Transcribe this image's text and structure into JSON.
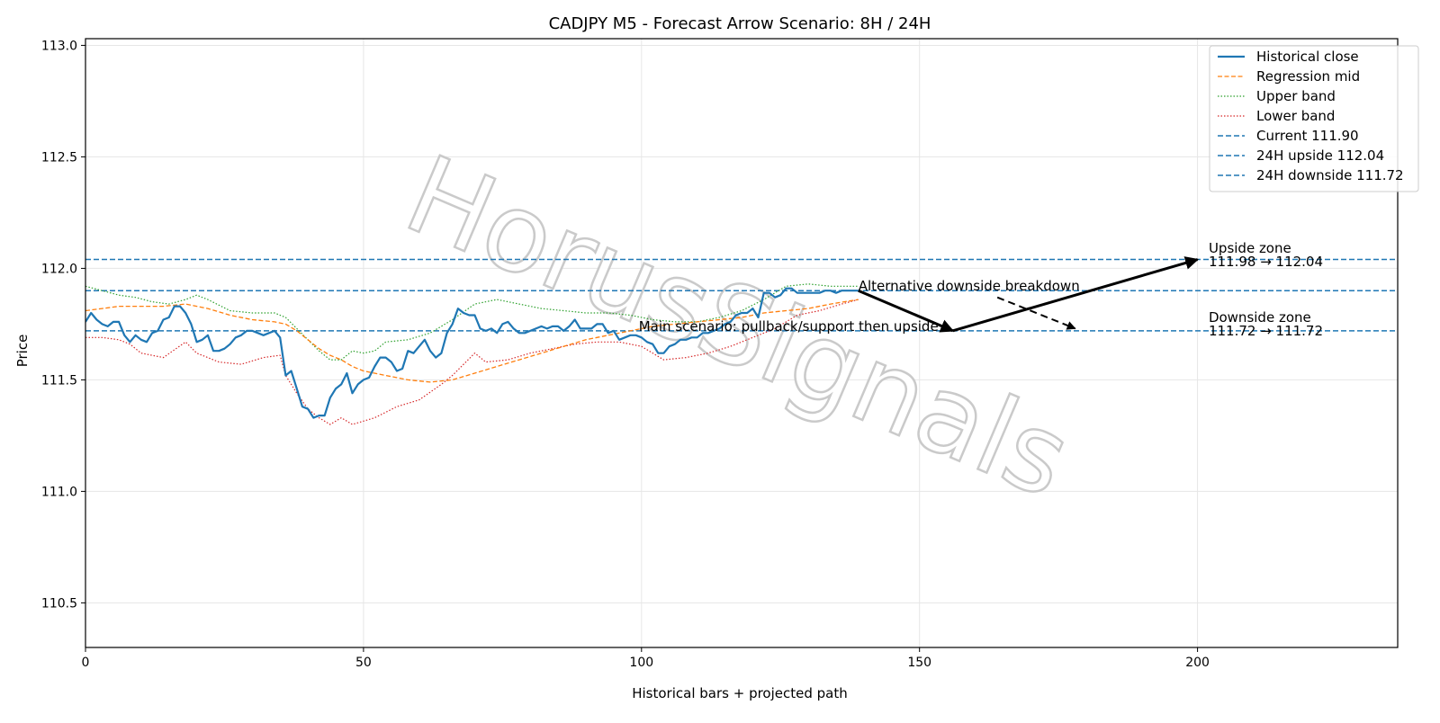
{
  "chart_data": {
    "type": "line",
    "title": "CADJPY M5 - Forecast Arrow Scenario: 8H / 24H",
    "xlabel": "Historical bars + projected path",
    "ylabel": "Price",
    "xlim": [
      0,
      236
    ],
    "ylim": [
      110.3,
      113.03
    ],
    "x_ticks": [
      0,
      50,
      100,
      150,
      200
    ],
    "y_ticks": [
      110.5,
      111.0,
      111.5,
      112.0,
      112.5,
      113.0
    ],
    "x_tick_labels": [
      "0",
      "50",
      "100",
      "150",
      "200"
    ],
    "y_tick_labels": [
      "110.5",
      "111.0",
      "111.5",
      "112.0",
      "112.5",
      "113.0"
    ],
    "grid": true,
    "legend_position": "top-right",
    "colors": {
      "historical": "#1f77b4",
      "regression": "#ff7f0e",
      "upper": "#2ca02c",
      "lower": "#d62728",
      "levels": "#1f77b4",
      "arrows": "#000000",
      "grid": "#e6e6e6"
    },
    "series": [
      {
        "name": "Historical close",
        "style": "solid",
        "points": [
          [
            0,
            111.76
          ],
          [
            1,
            111.8
          ],
          [
            2,
            111.77
          ],
          [
            3,
            111.75
          ],
          [
            4,
            111.74
          ],
          [
            5,
            111.76
          ],
          [
            6,
            111.76
          ],
          [
            7,
            111.7
          ],
          [
            8,
            111.67
          ],
          [
            9,
            111.7
          ],
          [
            10,
            111.68
          ],
          [
            11,
            111.67
          ],
          [
            12,
            111.71
          ],
          [
            13,
            111.72
          ],
          [
            14,
            111.77
          ],
          [
            15,
            111.78
          ],
          [
            16,
            111.83
          ],
          [
            17,
            111.83
          ],
          [
            18,
            111.8
          ],
          [
            19,
            111.75
          ],
          [
            20,
            111.67
          ],
          [
            21,
            111.68
          ],
          [
            22,
            111.7
          ],
          [
            23,
            111.63
          ],
          [
            24,
            111.63
          ],
          [
            25,
            111.64
          ],
          [
            26,
            111.66
          ],
          [
            27,
            111.69
          ],
          [
            28,
            111.7
          ],
          [
            29,
            111.72
          ],
          [
            30,
            111.72
          ],
          [
            31,
            111.71
          ],
          [
            32,
            111.7
          ],
          [
            33,
            111.71
          ],
          [
            34,
            111.72
          ],
          [
            35,
            111.69
          ],
          [
            36,
            111.52
          ],
          [
            37,
            111.54
          ],
          [
            38,
            111.46
          ],
          [
            39,
            111.38
          ],
          [
            40,
            111.37
          ],
          [
            41,
            111.33
          ],
          [
            42,
            111.34
          ],
          [
            43,
            111.34
          ],
          [
            44,
            111.42
          ],
          [
            45,
            111.46
          ],
          [
            46,
            111.48
          ],
          [
            47,
            111.53
          ],
          [
            48,
            111.44
          ],
          [
            49,
            111.48
          ],
          [
            50,
            111.5
          ],
          [
            51,
            111.51
          ],
          [
            52,
            111.56
          ],
          [
            53,
            111.6
          ],
          [
            54,
            111.6
          ],
          [
            55,
            111.58
          ],
          [
            56,
            111.54
          ],
          [
            57,
            111.55
          ],
          [
            58,
            111.63
          ],
          [
            59,
            111.62
          ],
          [
            60,
            111.65
          ],
          [
            61,
            111.68
          ],
          [
            62,
            111.63
          ],
          [
            63,
            111.6
          ],
          [
            64,
            111.62
          ],
          [
            65,
            111.71
          ],
          [
            66,
            111.75
          ],
          [
            67,
            111.82
          ],
          [
            68,
            111.8
          ],
          [
            69,
            111.79
          ],
          [
            70,
            111.79
          ],
          [
            71,
            111.73
          ],
          [
            72,
            111.72
          ],
          [
            73,
            111.73
          ],
          [
            74,
            111.71
          ],
          [
            75,
            111.75
          ],
          [
            76,
            111.76
          ],
          [
            77,
            111.73
          ],
          [
            78,
            111.71
          ],
          [
            79,
            111.71
          ],
          [
            80,
            111.72
          ],
          [
            81,
            111.73
          ],
          [
            82,
            111.74
          ],
          [
            83,
            111.73
          ],
          [
            84,
            111.74
          ],
          [
            85,
            111.74
          ],
          [
            86,
            111.72
          ],
          [
            87,
            111.74
          ],
          [
            88,
            111.77
          ],
          [
            89,
            111.73
          ],
          [
            90,
            111.73
          ],
          [
            91,
            111.73
          ],
          [
            92,
            111.75
          ],
          [
            93,
            111.75
          ],
          [
            94,
            111.71
          ],
          [
            95,
            111.72
          ],
          [
            96,
            111.68
          ],
          [
            97,
            111.69
          ],
          [
            98,
            111.7
          ],
          [
            99,
            111.7
          ],
          [
            100,
            111.69
          ],
          [
            101,
            111.67
          ],
          [
            102,
            111.66
          ],
          [
            103,
            111.62
          ],
          [
            104,
            111.62
          ],
          [
            105,
            111.65
          ],
          [
            106,
            111.66
          ],
          [
            107,
            111.68
          ],
          [
            108,
            111.68
          ],
          [
            109,
            111.69
          ],
          [
            110,
            111.69
          ],
          [
            111,
            111.71
          ],
          [
            112,
            111.71
          ],
          [
            113,
            111.72
          ],
          [
            114,
            111.73
          ],
          [
            115,
            111.75
          ],
          [
            116,
            111.76
          ],
          [
            117,
            111.79
          ],
          [
            118,
            111.8
          ],
          [
            119,
            111.8
          ],
          [
            120,
            111.82
          ],
          [
            121,
            111.78
          ],
          [
            122,
            111.89
          ],
          [
            123,
            111.89
          ],
          [
            124,
            111.87
          ],
          [
            125,
            111.88
          ],
          [
            126,
            111.91
          ],
          [
            127,
            111.91
          ],
          [
            128,
            111.89
          ],
          [
            129,
            111.89
          ],
          [
            130,
            111.89
          ],
          [
            131,
            111.89
          ],
          [
            132,
            111.89
          ],
          [
            133,
            111.9
          ],
          [
            134,
            111.9
          ],
          [
            135,
            111.89
          ],
          [
            136,
            111.9
          ],
          [
            137,
            111.9
          ],
          [
            138,
            111.9
          ],
          [
            139,
            111.9
          ]
        ]
      },
      {
        "name": "Regression mid",
        "style": "dashed",
        "points": [
          [
            0,
            111.81
          ],
          [
            3,
            111.82
          ],
          [
            6,
            111.83
          ],
          [
            10,
            111.83
          ],
          [
            14,
            111.83
          ],
          [
            18,
            111.84
          ],
          [
            22,
            111.82
          ],
          [
            26,
            111.79
          ],
          [
            30,
            111.77
          ],
          [
            34,
            111.76
          ],
          [
            36,
            111.75
          ],
          [
            38,
            111.72
          ],
          [
            40,
            111.68
          ],
          [
            42,
            111.64
          ],
          [
            44,
            111.61
          ],
          [
            46,
            111.59
          ],
          [
            48,
            111.56
          ],
          [
            50,
            111.54
          ],
          [
            54,
            111.52
          ],
          [
            58,
            111.5
          ],
          [
            62,
            111.49
          ],
          [
            66,
            111.5
          ],
          [
            70,
            111.53
          ],
          [
            74,
            111.56
          ],
          [
            78,
            111.59
          ],
          [
            82,
            111.62
          ],
          [
            86,
            111.65
          ],
          [
            90,
            111.68
          ],
          [
            94,
            111.7
          ],
          [
            98,
            111.72
          ],
          [
            102,
            111.74
          ],
          [
            106,
            111.75
          ],
          [
            110,
            111.76
          ],
          [
            114,
            111.77
          ],
          [
            118,
            111.78
          ],
          [
            122,
            111.8
          ],
          [
            126,
            111.81
          ],
          [
            130,
            111.82
          ],
          [
            134,
            111.84
          ],
          [
            139,
            111.86
          ]
        ]
      },
      {
        "name": "Upper band",
        "style": "dotted",
        "points": [
          [
            0,
            111.92
          ],
          [
            3,
            111.9
          ],
          [
            6,
            111.88
          ],
          [
            9,
            111.87
          ],
          [
            12,
            111.85
          ],
          [
            15,
            111.84
          ],
          [
            18,
            111.86
          ],
          [
            20,
            111.88
          ],
          [
            22,
            111.86
          ],
          [
            26,
            111.81
          ],
          [
            30,
            111.8
          ],
          [
            34,
            111.8
          ],
          [
            36,
            111.78
          ],
          [
            38,
            111.73
          ],
          [
            40,
            111.68
          ],
          [
            42,
            111.63
          ],
          [
            44,
            111.59
          ],
          [
            46,
            111.59
          ],
          [
            48,
            111.63
          ],
          [
            50,
            111.62
          ],
          [
            52,
            111.63
          ],
          [
            54,
            111.67
          ],
          [
            58,
            111.68
          ],
          [
            62,
            111.71
          ],
          [
            66,
            111.77
          ],
          [
            70,
            111.84
          ],
          [
            74,
            111.86
          ],
          [
            78,
            111.84
          ],
          [
            82,
            111.82
          ],
          [
            86,
            111.81
          ],
          [
            90,
            111.8
          ],
          [
            94,
            111.8
          ],
          [
            98,
            111.79
          ],
          [
            102,
            111.77
          ],
          [
            106,
            111.76
          ],
          [
            110,
            111.76
          ],
          [
            114,
            111.78
          ],
          [
            118,
            111.81
          ],
          [
            122,
            111.86
          ],
          [
            126,
            111.92
          ],
          [
            130,
            111.93
          ],
          [
            134,
            111.92
          ],
          [
            139,
            111.92
          ]
        ]
      },
      {
        "name": "Lower band",
        "style": "dotted",
        "points": [
          [
            0,
            111.69
          ],
          [
            3,
            111.69
          ],
          [
            6,
            111.68
          ],
          [
            8,
            111.66
          ],
          [
            10,
            111.62
          ],
          [
            14,
            111.6
          ],
          [
            18,
            111.67
          ],
          [
            20,
            111.62
          ],
          [
            24,
            111.58
          ],
          [
            28,
            111.57
          ],
          [
            32,
            111.6
          ],
          [
            35,
            111.61
          ],
          [
            36,
            111.52
          ],
          [
            38,
            111.44
          ],
          [
            40,
            111.37
          ],
          [
            42,
            111.33
          ],
          [
            44,
            111.3
          ],
          [
            46,
            111.33
          ],
          [
            48,
            111.3
          ],
          [
            52,
            111.33
          ],
          [
            56,
            111.38
          ],
          [
            60,
            111.41
          ],
          [
            64,
            111.48
          ],
          [
            66,
            111.52
          ],
          [
            70,
            111.62
          ],
          [
            72,
            111.58
          ],
          [
            76,
            111.59
          ],
          [
            80,
            111.62
          ],
          [
            84,
            111.64
          ],
          [
            88,
            111.66
          ],
          [
            92,
            111.67
          ],
          [
            96,
            111.67
          ],
          [
            100,
            111.65
          ],
          [
            104,
            111.59
          ],
          [
            108,
            111.6
          ],
          [
            112,
            111.62
          ],
          [
            116,
            111.65
          ],
          [
            120,
            111.69
          ],
          [
            124,
            111.73
          ],
          [
            128,
            111.79
          ],
          [
            132,
            111.81
          ],
          [
            136,
            111.84
          ],
          [
            139,
            111.86
          ]
        ]
      }
    ],
    "levels": [
      {
        "name": "Current 111.90",
        "y": 111.9
      },
      {
        "name": "24H upside 112.04",
        "y": 112.04
      },
      {
        "name": "24H downside 111.72",
        "y": 111.72
      }
    ],
    "arrows": [
      {
        "from": [
          139,
          111.9
        ],
        "to": [
          156,
          111.72
        ],
        "style": "solid"
      },
      {
        "from": [
          156,
          111.72
        ],
        "to": [
          200,
          112.04
        ],
        "style": "solid"
      },
      {
        "from": [
          164,
          111.87
        ],
        "to": [
          178,
          111.73
        ],
        "style": "dashed"
      }
    ],
    "annotations": [
      {
        "text": "Alternative downside breakdown",
        "x": 139,
        "y": 111.9
      },
      {
        "text": "Main scenario: pullback/support then upside",
        "x": 99.5,
        "y": 111.72
      },
      {
        "text": "Upside zone",
        "x": 202,
        "y": 112.07
      },
      {
        "text": "111.98 → 112.04",
        "x": 202,
        "y": 112.01
      },
      {
        "text": "Downside zone",
        "x": 202,
        "y": 111.76
      },
      {
        "text": "111.72 → 111.72",
        "x": 202,
        "y": 111.7
      }
    ],
    "watermark": "HorusSignals"
  }
}
